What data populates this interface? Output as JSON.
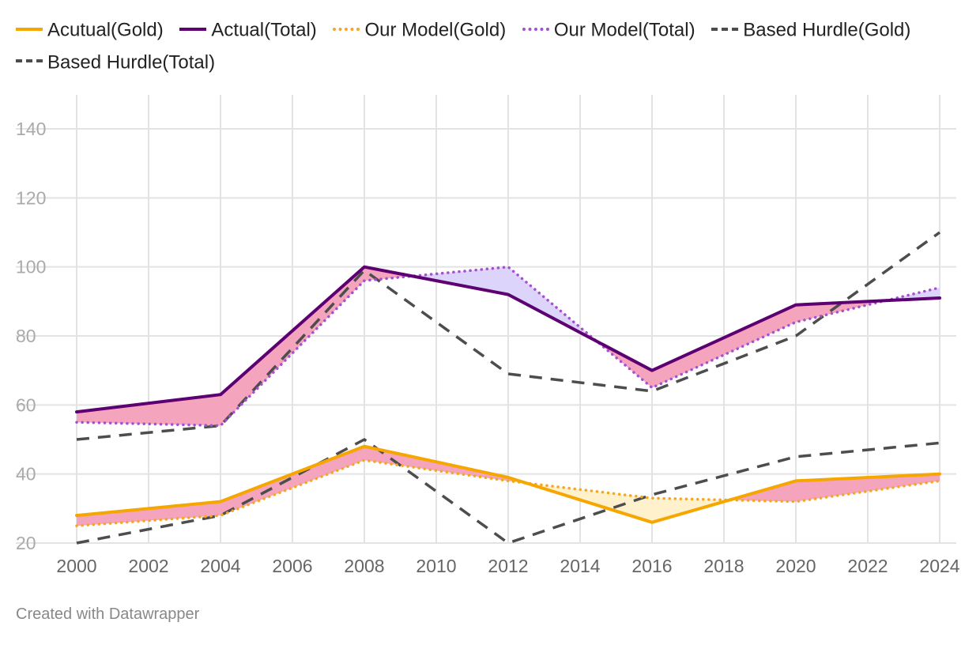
{
  "chart_data": {
    "type": "line",
    "title": "",
    "xlabel": "",
    "ylabel": "",
    "x": [
      2000,
      2004,
      2008,
      2012,
      2016,
      2020,
      2024
    ],
    "x_ticks": [
      "2000",
      "2002",
      "2004",
      "2006",
      "2008",
      "2010",
      "2012",
      "2014",
      "2016",
      "2018",
      "2020",
      "2022",
      "2024"
    ],
    "y_ticks": [
      "20",
      "40",
      "60",
      "80",
      "100",
      "120",
      "140"
    ],
    "xlim": [
      2000,
      2024
    ],
    "ylim": [
      20,
      150
    ],
    "grid": true,
    "legend_position": "top",
    "series": [
      {
        "name": "Acutual(Gold)",
        "values": [
          28,
          32,
          48,
          39,
          26,
          38,
          40
        ],
        "color": "#f5a700",
        "style": "solid"
      },
      {
        "name": "Actual(Total)",
        "values": [
          58,
          63,
          100,
          92,
          70,
          89,
          91
        ],
        "color": "#5c0072",
        "style": "solid"
      },
      {
        "name": "Our Model(Gold)",
        "values": [
          25,
          28,
          44,
          38,
          33,
          32,
          38
        ],
        "color": "#f5a623",
        "style": "dotted"
      },
      {
        "name": "Our Model(Total)",
        "values": [
          55,
          54,
          96,
          100,
          65,
          84,
          94
        ],
        "color": "#a64fd0",
        "style": "dotted"
      },
      {
        "name": "Based Hurdle(Gold)",
        "values": [
          20,
          28,
          50,
          20,
          34,
          45,
          49
        ],
        "color": "#4d4d4d",
        "style": "dashed"
      },
      {
        "name": "Based Hurdle(Total)",
        "values": [
          50,
          54,
          99,
          69,
          64,
          80,
          110
        ],
        "color": "#4d4d4d",
        "style": "dashed"
      }
    ],
    "ranges": [
      {
        "between": [
          "Acutual(Gold)",
          "Our Model(Gold)"
        ],
        "above_color": "#f4a4bc",
        "below_color": "#fff1cc"
      },
      {
        "between": [
          "Actual(Total)",
          "Our Model(Total)"
        ],
        "above_color": "#f4a4bc",
        "below_color": "#ddd4fb"
      }
    ]
  },
  "legend": {
    "items": [
      {
        "label": "Acutual(Gold)",
        "color": "#f5a700",
        "style": "solid"
      },
      {
        "label": "Actual(Total)",
        "color": "#5c0072",
        "style": "solid"
      },
      {
        "label": "Our Model(Gold)",
        "color": "#f5a623",
        "style": "dotted"
      },
      {
        "label": "Our Model(Total)",
        "color": "#a64fd0",
        "style": "dotted"
      },
      {
        "label": "Based Hurdle(Gold)",
        "color": "#4d4d4d",
        "style": "dashed"
      },
      {
        "label": "Based Hurdle(Total)",
        "color": "#4d4d4d",
        "style": "dashed"
      }
    ]
  },
  "footer": {
    "credit": "Created with Datawrapper"
  },
  "colors": {
    "grid": "#e3e3e3",
    "y_tick_text": "#aaaaaa",
    "x_tick_text": "#666666"
  }
}
